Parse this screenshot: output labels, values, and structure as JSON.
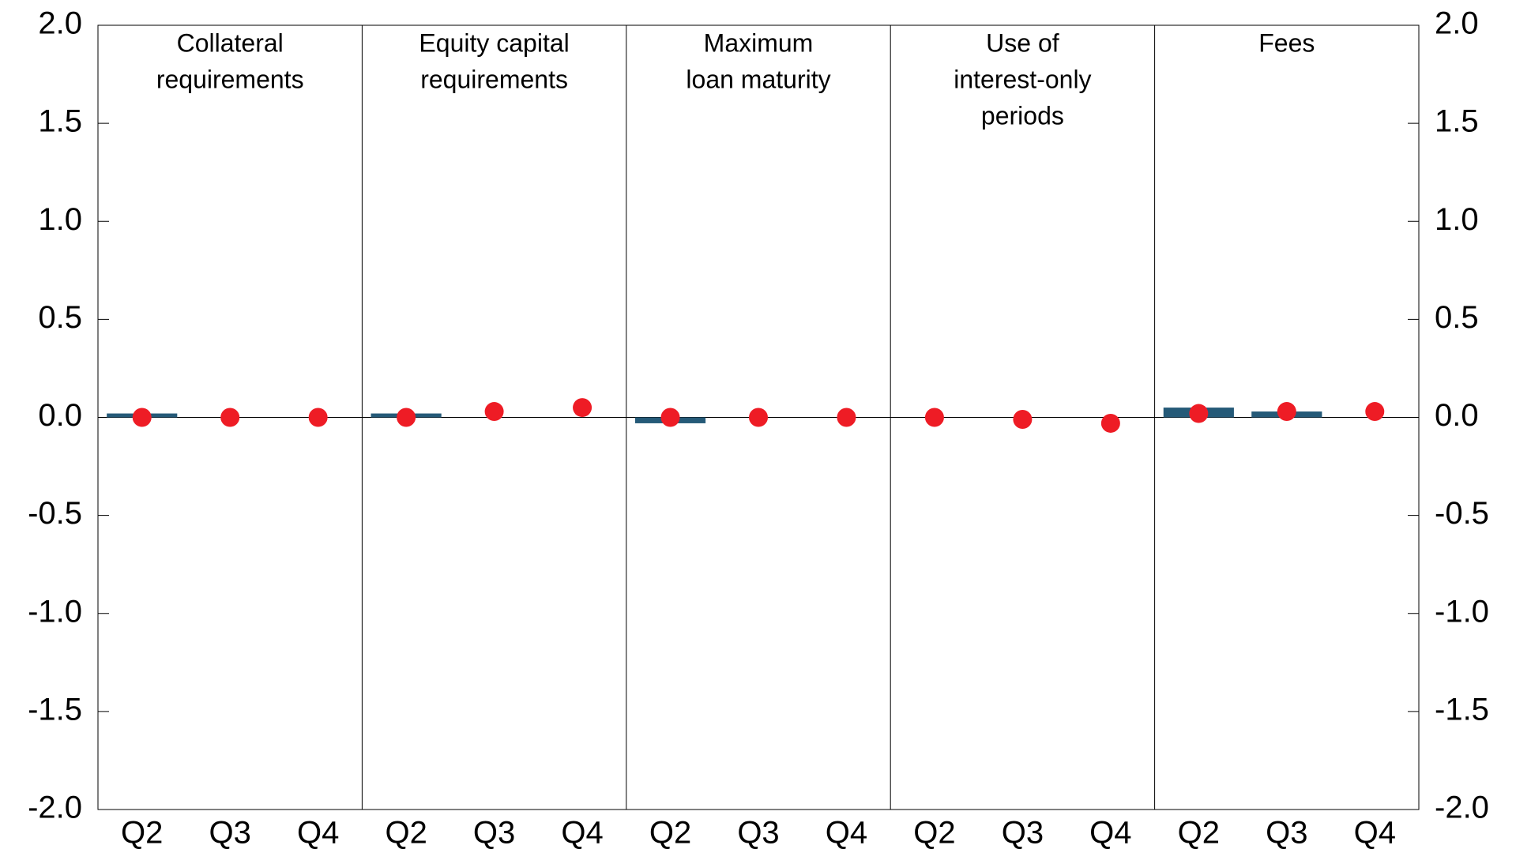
{
  "chart_data": {
    "type": "bar",
    "panels": [
      {
        "title": [
          "Collateral",
          "requirements"
        ]
      },
      {
        "title": [
          "Equity capital",
          "requirements"
        ]
      },
      {
        "title": [
          "Maximum",
          "loan maturity"
        ]
      },
      {
        "title": [
          "Use of",
          "interest-only",
          "periods"
        ]
      },
      {
        "title": [
          "Fees"
        ]
      }
    ],
    "categories": [
      "Q2",
      "Q3",
      "Q4",
      "Q2",
      "Q3",
      "Q4",
      "Q2",
      "Q3",
      "Q4",
      "Q2",
      "Q3",
      "Q4",
      "Q2",
      "Q3",
      "Q4"
    ],
    "series": [
      {
        "type": "bar",
        "color": "#255a78",
        "values": [
          0.02,
          null,
          null,
          0.02,
          null,
          null,
          -0.03,
          null,
          null,
          null,
          null,
          null,
          0.05,
          0.03,
          null
        ]
      },
      {
        "type": "scatter",
        "color": "#ee1c25",
        "values": [
          0,
          0,
          0,
          0,
          0.03,
          0.05,
          0,
          0,
          0,
          0,
          -0.01,
          -0.03,
          0.02,
          0.03,
          0.03
        ]
      }
    ],
    "ylim": [
      -2,
      2
    ],
    "yticks": [
      {
        "value": -2,
        "label": "-2.0"
      },
      {
        "value": -1.5,
        "label": "-1.5"
      },
      {
        "value": -1,
        "label": "-1.0"
      },
      {
        "value": -0.5,
        "label": "-0.5"
      },
      {
        "value": 0,
        "label": "0.0"
      },
      {
        "value": 0.5,
        "label": "0.5"
      },
      {
        "value": 1,
        "label": "1.0"
      },
      {
        "value": 1.5,
        "label": "1.5"
      },
      {
        "value": 2,
        "label": "2.0"
      }
    ]
  }
}
